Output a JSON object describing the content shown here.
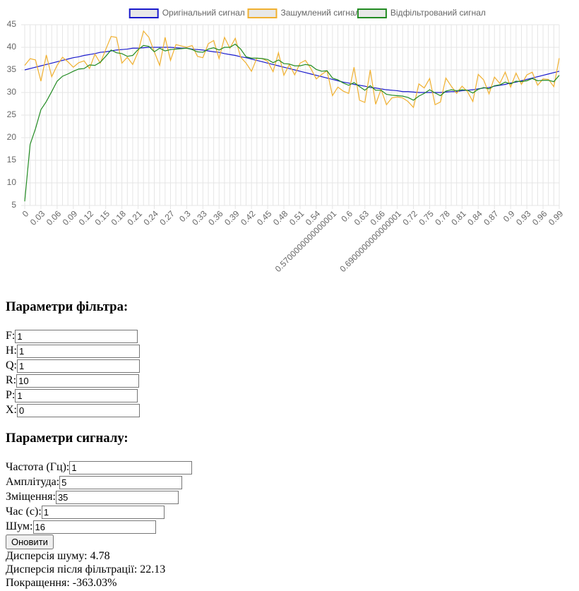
{
  "chart_data": {
    "type": "line",
    "categories": [
      "0",
      null,
      null,
      "0.03",
      null,
      null,
      "0.06",
      null,
      null,
      "0.09",
      null,
      null,
      "0.12",
      null,
      null,
      "0.15",
      null,
      null,
      "0.18",
      null,
      null,
      "0.21",
      null,
      null,
      "0.24",
      null,
      null,
      "0.27",
      null,
      null,
      "0.3",
      null,
      null,
      "0.33",
      null,
      null,
      "0.36",
      null,
      null,
      "0.39",
      null,
      null,
      "0.42",
      null,
      null,
      "0.45",
      null,
      null,
      "0.48",
      null,
      null,
      "0.51",
      null,
      null,
      "0.54",
      null,
      null,
      "0.5700000000000001",
      null,
      null,
      "0.6",
      null,
      null,
      "0.63",
      null,
      null,
      "0.66",
      null,
      null,
      "0.6900000000000001",
      null,
      null,
      "0.72",
      null,
      null,
      "0.75",
      null,
      null,
      "0.78",
      null,
      null,
      "0.81",
      null,
      null,
      "0.84",
      null,
      null,
      "0.87",
      null,
      null,
      "0.9",
      null,
      null,
      "0.93",
      null,
      null,
      "0.96",
      null,
      null,
      "0.99"
    ],
    "series": [
      {
        "name": "Оригінальний сигнал",
        "color": "#1a1acc",
        "values": [
          35.0,
          35.3,
          35.6,
          35.9,
          36.2,
          36.5,
          36.8,
          37.1,
          37.4,
          37.7,
          37.9,
          38.2,
          38.4,
          38.6,
          38.9,
          39.0,
          39.2,
          39.4,
          39.5,
          39.6,
          39.8,
          39.8,
          39.9,
          40.0,
          40.0,
          40.0,
          40.0,
          40.0,
          39.9,
          39.8,
          39.8,
          39.6,
          39.5,
          39.4,
          39.2,
          39.0,
          38.9,
          38.6,
          38.4,
          38.2,
          37.9,
          37.7,
          37.4,
          37.1,
          36.8,
          36.5,
          36.2,
          35.9,
          35.6,
          35.3,
          35.0,
          34.7,
          34.4,
          34.1,
          33.8,
          33.5,
          33.2,
          32.9,
          32.6,
          32.3,
          32.1,
          31.8,
          31.6,
          31.4,
          31.1,
          31.0,
          30.8,
          30.6,
          30.5,
          30.4,
          30.2,
          30.2,
          30.1,
          30.0,
          30.0,
          30.0,
          30.0,
          30.0,
          30.1,
          30.2,
          30.2,
          30.4,
          30.5,
          30.6,
          30.8,
          31.0,
          31.1,
          31.4,
          31.6,
          31.8,
          32.1,
          32.3,
          32.6,
          32.9,
          33.2,
          33.5,
          33.8,
          34.1,
          34.4,
          34.7
        ]
      },
      {
        "name": "Зашумлений сигнал",
        "color": "#f0b030",
        "values": [
          36,
          37.5,
          37.2,
          32.5,
          38.3,
          33.5,
          36,
          37.8,
          36.8,
          35.6,
          36.6,
          37,
          35.3,
          38.5,
          36.5,
          39.5,
          42.4,
          42.2,
          36.5,
          37.8,
          36.2,
          39,
          43.6,
          42.2,
          39,
          36,
          42.2,
          37.1,
          40.6,
          40.3,
          40,
          40.4,
          38,
          37.7,
          40.8,
          41.5,
          37.5,
          42.2,
          39.8,
          42,
          37.8,
          36.5,
          34.7,
          37.6,
          37.5,
          36.9,
          34.6,
          38.8,
          33.8,
          36.2,
          33.9,
          36.5,
          37.1,
          35.3,
          33,
          34,
          34.8,
          29.3,
          31.2,
          30.3,
          29.8,
          35.6,
          28.3,
          27.8,
          35,
          27.4,
          30.7,
          27.3,
          28.8,
          29,
          28.8,
          28,
          26.7,
          31.9,
          31,
          33.1,
          27.3,
          27.9,
          33.2,
          31.4,
          29.8,
          31.4,
          30.2,
          28,
          34,
          32.8,
          29.7,
          33.4,
          32,
          34.5,
          31.2,
          34.3,
          31.8,
          33.9,
          34.5,
          31.6,
          33,
          32.9,
          31.3,
          37.6
        ]
      },
      {
        "name": "Відфільтрований сигнал",
        "color": "#228b22",
        "values": [
          5.9,
          18.5,
          22,
          26.2,
          28,
          30.2,
          32.5,
          33.6,
          34.1,
          34.7,
          35.2,
          35.3,
          36.1,
          36,
          36.7,
          38,
          39.4,
          38.8,
          38.6,
          38,
          38.2,
          39.5,
          40.4,
          40.2,
          39,
          39.8,
          39.2,
          39.5,
          39.6,
          39.7,
          39.8,
          39.5,
          39,
          38.9,
          39.6,
          39.9,
          39.4,
          40,
          40,
          40.7,
          39.6,
          37.9,
          37.6,
          37.6,
          37.5,
          37.3,
          36.6,
          37.2,
          36.4,
          36.3,
          35.9,
          35.9,
          36.2,
          36,
          35.1,
          34.7,
          34.8,
          33.2,
          32.8,
          32.1,
          31.6,
          32.2,
          31.3,
          30.5,
          31.5,
          30.5,
          30.5,
          29.6,
          29.4,
          29.3,
          29.2,
          28.9,
          28.3,
          29.2,
          29.8,
          30.6,
          29.9,
          29.3,
          30.3,
          30.6,
          30.4,
          30.6,
          30.5,
          29.9,
          30.7,
          31.1,
          30.8,
          31.5,
          31.7,
          32.3,
          31.9,
          32.5,
          32.4,
          32.6,
          33.1,
          32.6,
          32.7,
          32.7,
          32.4,
          33.8
        ]
      }
    ],
    "ylim": [
      5,
      45
    ],
    "yticks": [
      5,
      10,
      15,
      20,
      25,
      30,
      35,
      40,
      45
    ],
    "grid": true,
    "legend": "top"
  },
  "form": {
    "filter_title": "Параметри фільтра:",
    "filter_fields": [
      {
        "label": "F:",
        "value": "1"
      },
      {
        "label": "H:",
        "value": "1"
      },
      {
        "label": "Q:",
        "value": "1"
      },
      {
        "label": "R:",
        "value": "10"
      },
      {
        "label": "P:",
        "value": "1"
      },
      {
        "label": "X:",
        "value": "0"
      }
    ],
    "signal_title": "Параметри сигналу:",
    "signal_fields": [
      {
        "label": "Частота (Гц):",
        "value": "1"
      },
      {
        "label": "Амплітуда:",
        "value": "5"
      },
      {
        "label": "Зміщення:",
        "value": "35"
      },
      {
        "label": "Час (с):",
        "value": "1"
      },
      {
        "label": "Шум:",
        "value": "16"
      }
    ],
    "button": "Оновити",
    "results": [
      "Дисперсія шуму: 4.78",
      "Дисперсія після фільтрації: 22.13",
      "Покращення: -363.03%"
    ]
  }
}
